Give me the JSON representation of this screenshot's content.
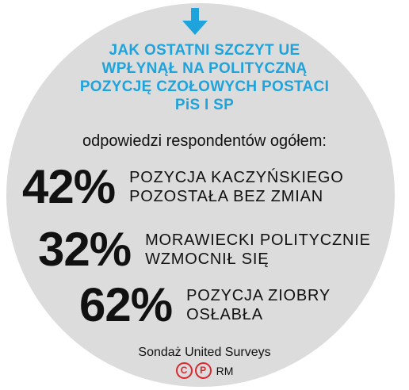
{
  "colors": {
    "circle_background": "#dcdcdc",
    "headline": "#1fa3dc",
    "arrow": "#1fa3dc",
    "text": "#111111",
    "credit_badges": "#e0242c"
  },
  "icons": {
    "arrow": "down-arrow-icon",
    "copyright": "copyright-c-icon",
    "photo": "copyright-p-icon"
  },
  "headline": {
    "lines": [
      "JAK OSTATNI SZCZYT UE",
      "WPŁYNĄŁ NA POLITYCZNĄ",
      "POZYCJĘ CZOŁOWYCH POSTACI",
      "PiS I SP"
    ]
  },
  "subtitle": "odpowiedzi respondentów ogółem:",
  "chart_data": {
    "type": "table",
    "title": "JAK OSTATNI SZCZYT UE WPŁYNĄŁ NA POLITYCZNĄ POZYCJĘ CZOŁOWYCH POSTACI PiS I SP",
    "subtitle": "odpowiedzi respondentów ogółem:",
    "unit": "%",
    "rows": [
      {
        "value": 42,
        "value_label": "42%",
        "label_lines": [
          "POZYCJA KACZYŃSKIEGO",
          "POZOSTAŁA BEZ ZMIAN"
        ]
      },
      {
        "value": 32,
        "value_label": "32%",
        "label_lines": [
          "MORAWIECKI POLITYCZNIE",
          "WZMOCNIŁ SIĘ"
        ]
      },
      {
        "value": 62,
        "value_label": "62%",
        "label_lines": [
          "POZYCJA ZIOBRY",
          "OSŁABŁA"
        ]
      }
    ]
  },
  "source": "Sondaż United Surveys",
  "credits": {
    "badge_c": "C",
    "badge_p": "P",
    "initials": "RM"
  }
}
